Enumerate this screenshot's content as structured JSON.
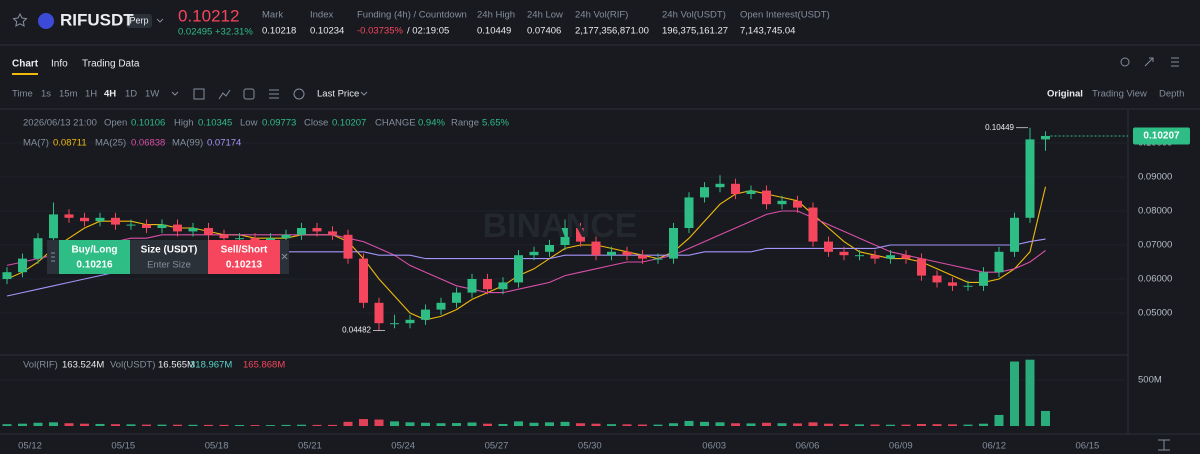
{
  "header": {
    "symbol": "RIFUSDT",
    "badge": "Perp",
    "price": "0.10212",
    "change": "0.02495",
    "change_pct": "+32.31%",
    "stats": [
      {
        "label": "Mark",
        "value": "0.10218"
      },
      {
        "label": "Index",
        "value": "0.10234"
      },
      {
        "label": "Funding (4h) / Countdown",
        "value": "-0.03735%",
        "extra": "/ 02:19:05"
      },
      {
        "label": "24h High",
        "value": "0.10449"
      },
      {
        "label": "24h Low",
        "value": "0.07406"
      },
      {
        "label": "24h Vol(RIF)",
        "value": "2,177,356,871.00"
      },
      {
        "label": "24h Vol(USDT)",
        "value": "196,375,161.27"
      },
      {
        "label": "Open Interest(USDT)",
        "value": "7,143,745.04"
      }
    ]
  },
  "tabs": [
    "Chart",
    "Info",
    "Trading Data"
  ],
  "toolbar": {
    "intervals": [
      "Time",
      "1s",
      "15m",
      "1H",
      "4H",
      "1D",
      "1W"
    ],
    "price_type": "Last Price",
    "views": [
      "Original",
      "Trading View",
      "Depth"
    ]
  },
  "legend": {
    "time": "2026/06/13 21:00",
    "labels": [
      "Open",
      "High",
      "Low",
      "Close",
      "CHANGE",
      "Range"
    ],
    "change": "0.94%",
    "range": "5.65%"
  },
  "order_panel": {
    "buy": "Buy/Long",
    "buy_price": "0.10216",
    "size": "Size (USDT)",
    "size_placeholder": "Enter Size",
    "sell": "Sell/Short",
    "sell_price": "0.10213"
  },
  "volume_legend": {
    "name": "Vol(RIF)",
    "value": "163.524M",
    "usdt_name": "Vol(USDT)",
    "usdt_value": "16.565M",
    "ma1": "318.967M",
    "ma2": "165.868M"
  },
  "watermark": "BINANCE",
  "chart_data": {
    "type": "candlestick",
    "candles": [
      [
        0.06,
        0.0635,
        0.0585,
        0.062
      ],
      [
        0.062,
        0.0675,
        0.0605,
        0.066
      ],
      [
        0.066,
        0.0735,
        0.0645,
        0.072
      ],
      [
        0.072,
        0.0825,
        0.0705,
        0.079
      ],
      [
        0.079,
        0.0805,
        0.0765,
        0.078
      ],
      [
        0.078,
        0.0795,
        0.0755,
        0.077
      ],
      [
        0.077,
        0.0795,
        0.0755,
        0.078
      ],
      [
        0.078,
        0.0795,
        0.0745,
        0.076
      ],
      [
        0.076,
        0.0775,
        0.0745,
        0.076
      ],
      [
        0.076,
        0.0775,
        0.0735,
        0.075
      ],
      [
        0.075,
        0.0775,
        0.0735,
        0.076
      ],
      [
        0.076,
        0.0775,
        0.0725,
        0.074
      ],
      [
        0.074,
        0.0765,
        0.0725,
        0.075
      ],
      [
        0.075,
        0.0765,
        0.0715,
        0.073
      ],
      [
        0.073,
        0.0745,
        0.0705,
        0.072
      ],
      [
        0.072,
        0.0735,
        0.0705,
        0.072
      ],
      [
        0.072,
        0.0735,
        0.0695,
        0.071
      ],
      [
        0.071,
        0.0735,
        0.0695,
        0.072
      ],
      [
        0.072,
        0.0745,
        0.0705,
        0.073
      ],
      [
        0.073,
        0.0765,
        0.0715,
        0.075
      ],
      [
        0.075,
        0.0765,
        0.0725,
        0.074
      ],
      [
        0.074,
        0.0755,
        0.0715,
        0.073
      ],
      [
        0.073,
        0.0745,
        0.0645,
        0.066
      ],
      [
        0.066,
        0.0675,
        0.0515,
        0.053
      ],
      [
        0.053,
        0.0545,
        0.04482,
        0.047
      ],
      [
        0.047,
        0.0495,
        0.0455,
        0.047
      ],
      [
        0.047,
        0.0495,
        0.0455,
        0.048
      ],
      [
        0.048,
        0.0525,
        0.0465,
        0.051
      ],
      [
        0.051,
        0.0545,
        0.0495,
        0.053
      ],
      [
        0.053,
        0.0575,
        0.0515,
        0.056
      ],
      [
        0.056,
        0.0615,
        0.0545,
        0.06
      ],
      [
        0.06,
        0.0615,
        0.0555,
        0.057
      ],
      [
        0.057,
        0.0605,
        0.0555,
        0.059
      ],
      [
        0.059,
        0.0685,
        0.0575,
        0.067
      ],
      [
        0.067,
        0.0695,
        0.0655,
        0.068
      ],
      [
        0.068,
        0.0715,
        0.0665,
        0.07
      ],
      [
        0.07,
        0.0775,
        0.0685,
        0.075
      ],
      [
        0.075,
        0.0765,
        0.0695,
        0.071
      ],
      [
        0.071,
        0.0725,
        0.0655,
        0.067
      ],
      [
        0.067,
        0.0695,
        0.0655,
        0.068
      ],
      [
        0.068,
        0.0695,
        0.0655,
        0.067
      ],
      [
        0.067,
        0.0685,
        0.0645,
        0.066
      ],
      [
        0.066,
        0.0675,
        0.0645,
        0.066
      ],
      [
        0.066,
        0.0765,
        0.0645,
        0.075
      ],
      [
        0.075,
        0.0855,
        0.0735,
        0.084
      ],
      [
        0.084,
        0.0885,
        0.0825,
        0.087
      ],
      [
        0.087,
        0.0905,
        0.0855,
        0.088
      ],
      [
        0.088,
        0.0895,
        0.0835,
        0.085
      ],
      [
        0.085,
        0.0875,
        0.0835,
        0.086
      ],
      [
        0.086,
        0.0875,
        0.0805,
        0.082
      ],
      [
        0.082,
        0.0845,
        0.0805,
        0.083
      ],
      [
        0.083,
        0.0845,
        0.0795,
        0.081
      ],
      [
        0.081,
        0.0825,
        0.0695,
        0.071
      ],
      [
        0.071,
        0.0725,
        0.0665,
        0.068
      ],
      [
        0.068,
        0.0695,
        0.0655,
        0.067
      ],
      [
        0.067,
        0.0685,
        0.0655,
        0.067
      ],
      [
        0.067,
        0.0685,
        0.0645,
        0.066
      ],
      [
        0.066,
        0.0685,
        0.0645,
        0.067
      ],
      [
        0.067,
        0.0685,
        0.0645,
        0.066
      ],
      [
        0.066,
        0.0675,
        0.0595,
        0.061
      ],
      [
        0.061,
        0.0625,
        0.0575,
        0.059
      ],
      [
        0.059,
        0.0605,
        0.0565,
        0.058
      ],
      [
        0.058,
        0.0595,
        0.0565,
        0.058
      ],
      [
        0.058,
        0.0635,
        0.0565,
        0.062
      ],
      [
        0.062,
        0.0695,
        0.0605,
        0.068
      ],
      [
        0.068,
        0.0795,
        0.0665,
        0.078
      ],
      [
        0.078,
        0.10449,
        0.0765,
        0.10106
      ],
      [
        0.10106,
        0.10345,
        0.09773,
        0.10207
      ]
    ],
    "up_color": "#2ebd85",
    "down_color": "#f6465d",
    "series": [
      {
        "name": "MA(7)",
        "color": "#f0b90b",
        "values": [
          0.06,
          0.062,
          0.065,
          0.069,
          0.072,
          0.075,
          0.077,
          0.077,
          0.077,
          0.076,
          0.076,
          0.075,
          0.075,
          0.074,
          0.073,
          0.073,
          0.072,
          0.072,
          0.072,
          0.073,
          0.073,
          0.073,
          0.071,
          0.066,
          0.06,
          0.055,
          0.05,
          0.048,
          0.049,
          0.051,
          0.054,
          0.056,
          0.058,
          0.061,
          0.063,
          0.066,
          0.069,
          0.07,
          0.07,
          0.069,
          0.068,
          0.067,
          0.066,
          0.068,
          0.072,
          0.077,
          0.082,
          0.085,
          0.086,
          0.085,
          0.084,
          0.083,
          0.079,
          0.075,
          0.071,
          0.068,
          0.067,
          0.066,
          0.066,
          0.065,
          0.063,
          0.061,
          0.059,
          0.059,
          0.06,
          0.063,
          0.068,
          0.08711
        ]
      },
      {
        "name": "MA(25)",
        "color": "#d94fa8",
        "values": [
          0.064,
          0.065,
          0.066,
          0.067,
          0.068,
          0.069,
          0.07,
          0.071,
          0.072,
          0.072,
          0.073,
          0.073,
          0.073,
          0.073,
          0.073,
          0.073,
          0.073,
          0.073,
          0.073,
          0.073,
          0.073,
          0.073,
          0.072,
          0.071,
          0.069,
          0.067,
          0.064,
          0.062,
          0.06,
          0.058,
          0.057,
          0.056,
          0.056,
          0.057,
          0.058,
          0.059,
          0.061,
          0.062,
          0.063,
          0.064,
          0.065,
          0.065,
          0.066,
          0.067,
          0.069,
          0.071,
          0.073,
          0.075,
          0.077,
          0.079,
          0.08,
          0.08,
          0.078,
          0.076,
          0.074,
          0.072,
          0.07,
          0.068,
          0.067,
          0.066,
          0.065,
          0.064,
          0.063,
          0.062,
          0.062,
          0.063,
          0.065,
          0.06838
        ]
      },
      {
        "name": "MA(99)",
        "color": "#a594f9",
        "values": [
          0.055,
          0.056,
          0.057,
          0.058,
          0.059,
          0.06,
          0.061,
          0.062,
          0.063,
          0.063,
          0.064,
          0.065,
          0.065,
          0.066,
          0.066,
          0.067,
          0.067,
          0.067,
          0.068,
          0.068,
          0.068,
          0.068,
          0.068,
          0.068,
          0.067,
          0.067,
          0.067,
          0.066,
          0.066,
          0.066,
          0.066,
          0.066,
          0.066,
          0.066,
          0.066,
          0.066,
          0.067,
          0.067,
          0.067,
          0.067,
          0.067,
          0.067,
          0.067,
          0.067,
          0.067,
          0.068,
          0.068,
          0.068,
          0.068,
          0.069,
          0.069,
          0.069,
          0.069,
          0.069,
          0.069,
          0.069,
          0.069,
          0.07,
          0.07,
          0.07,
          0.07,
          0.07,
          0.07,
          0.07,
          0.07,
          0.07,
          0.071,
          0.07174
        ]
      }
    ],
    "ylim": [
      0.039,
      0.1075
    ],
    "yticks": [
      {
        "value": 0.05,
        "label": "0.05000"
      },
      {
        "value": 0.06,
        "label": "0.06000"
      },
      {
        "value": 0.07,
        "label": "0.07000"
      },
      {
        "value": 0.08,
        "label": "0.08000"
      },
      {
        "value": 0.09,
        "label": "0.09000"
      },
      {
        "value": 0.1,
        "label": "0.10000"
      }
    ],
    "xticks": [
      "05/12",
      "05/15",
      "05/18",
      "05/21",
      "05/24",
      "05/27",
      "05/30",
      "06/03",
      "06/06",
      "06/09",
      "06/12",
      "06/15"
    ],
    "grid": true,
    "volume": {
      "values": [
        20000000,
        25000000,
        35000000,
        40000000,
        30000000,
        25000000,
        22000000,
        20000000,
        18000000,
        15000000,
        15000000,
        14000000,
        13000000,
        12000000,
        12000000,
        11000000,
        10000000,
        10000000,
        12000000,
        14000000,
        12000000,
        12000000,
        45000000,
        75000000,
        70000000,
        50000000,
        40000000,
        35000000,
        30000000,
        32000000,
        38000000,
        25000000,
        22000000,
        50000000,
        35000000,
        40000000,
        45000000,
        30000000,
        25000000,
        20000000,
        18000000,
        16000000,
        15000000,
        30000000,
        55000000,
        45000000,
        40000000,
        30000000,
        28000000,
        35000000,
        30000000,
        28000000,
        40000000,
        25000000,
        20000000,
        18000000,
        16000000,
        14000000,
        15000000,
        22000000,
        20000000,
        18000000,
        15000000,
        25000000,
        120000000,
        700000000,
        720000000,
        163524000
      ],
      "ylim": [
        0,
        760000000
      ],
      "yticks": [
        {
          "value": 500000000,
          "label": "500M"
        }
      ]
    }
  }
}
